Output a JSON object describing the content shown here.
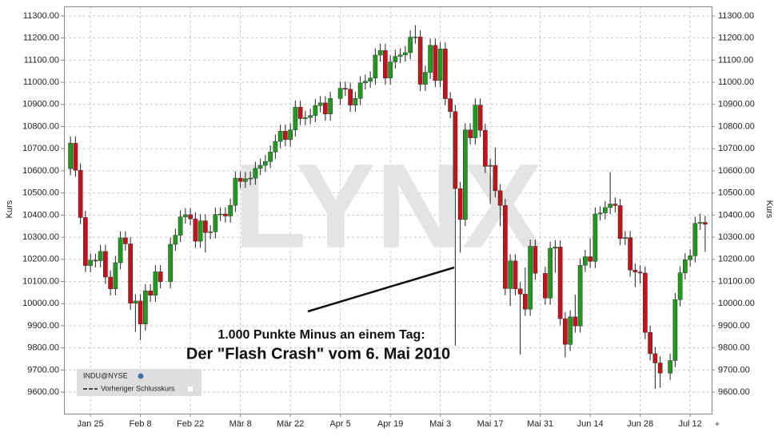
{
  "chart_data": {
    "type": "candlestick",
    "watermark": "LYNX",
    "y_label": "Kurs",
    "annotations": [
      "1.000 Punkte Minus an einem Tag:",
      "Der \"Flash Crash\" vom 6. Mai 2010"
    ],
    "legend": {
      "symbol": "INDU@NYSE",
      "line": "Vorheriger Schlusskurs"
    },
    "up_color": "#1f9a1f",
    "down_color": "#c8101a",
    "grid": true,
    "xlim": [
      -1.3,
      128.3
    ],
    "xticks": [
      {
        "value": 4,
        "label": "Jan 25"
      },
      {
        "value": 14,
        "label": "Feb 8"
      },
      {
        "value": 24,
        "label": "Feb 22"
      },
      {
        "value": 34,
        "label": "Mär 8"
      },
      {
        "value": 44,
        "label": "Mär 22"
      },
      {
        "value": 54,
        "label": "Apr 5"
      },
      {
        "value": 64,
        "label": "Apr 19"
      },
      {
        "value": 74,
        "label": "Mai 3"
      },
      {
        "value": 84,
        "label": "Mai 17"
      },
      {
        "value": 94,
        "label": "Mai 31"
      },
      {
        "value": 104,
        "label": "Jun 14"
      },
      {
        "value": 114,
        "label": "Jun 28"
      },
      {
        "value": 124,
        "label": "Jul 12"
      }
    ],
    "ylim": [
      9503,
      11343
    ],
    "yticks": [
      {
        "value": 9600,
        "label": "9600.00"
      },
      {
        "value": 9700,
        "label": "9700.00"
      },
      {
        "value": 9800,
        "label": "9800.00"
      },
      {
        "value": 9900,
        "label": "9900.00"
      },
      {
        "value": 10000,
        "label": "10000.00"
      },
      {
        "value": 10100,
        "label": "10100.00"
      },
      {
        "value": 10200,
        "label": "10200.00"
      },
      {
        "value": 10300,
        "label": "10300.00"
      },
      {
        "value": 10400,
        "label": "10400.00"
      },
      {
        "value": 10500,
        "label": "10500.00"
      },
      {
        "value": 10600,
        "label": "10600.00"
      },
      {
        "value": 10700,
        "label": "10700.00"
      },
      {
        "value": 10800,
        "label": "10800.00"
      },
      {
        "value": 10900,
        "label": "10900.00"
      },
      {
        "value": 11000,
        "label": "11000.00"
      },
      {
        "value": 11100,
        "label": "11100.00"
      },
      {
        "value": 11200,
        "label": "11200.00"
      },
      {
        "value": 11300,
        "label": "11300.00"
      }
    ],
    "open": [
      10610,
      10725,
      10603,
      10389,
      10172,
      10196,
      10194,
      10236,
      10120,
      10067,
      10185,
      10297,
      10270,
      10002,
      10012,
      9908,
      10058,
      10038,
      10144,
      null,
      10099,
      10268,
      10309,
      10392,
      10402,
      10383,
      10282,
      10374,
      10321,
      10325,
      10403,
      10405,
      10396,
      10444,
      10567,
      10552,
      10564,
      10567,
      10611,
      10625,
      10642,
      10685,
      10733,
      10779,
      10741,
      10785,
      10888,
      10836,
      10841,
      10850,
      10895,
      10907,
      10857,
      null,
      10927,
      10973,
      10969,
      10897,
      10927,
      10997,
      11005,
      11019,
      11123,
      11144,
      11019,
      11092,
      11117,
      11124,
      11134,
      11204,
      11205,
      10991,
      11045,
      11167,
      11008,
      11151,
      10926,
      10868,
      10520,
      10380,
      10785,
      10749,
      10897,
      10783,
      10620,
      10625,
      10510,
      10444,
      10068,
      10193,
      10067,
      10043,
      9975,
      10259,
      null,
      10137,
      10025,
      10250,
      10256,
      9932,
      9816,
      9940,
      9899,
      10173,
      10212,
      10191,
      10405,
      10410,
      10434,
      10450,
      10443,
      10294,
      10298,
      10152,
      10143,
      10138,
      9870,
      9774,
      9732,
      null,
      9686,
      9743,
      10018,
      10139,
      10198,
      10216,
      10363,
      10367
    ],
    "high": [
      10755,
      10755,
      10633,
      10419,
      10226,
      10226,
      10266,
      10266,
      10150,
      10215,
      10327,
      10327,
      10300,
      10042,
      10042,
      10088,
      10088,
      10174,
      10174,
      null,
      10298,
      10339,
      10422,
      10432,
      10432,
      10413,
      10404,
      10404,
      10355,
      10433,
      10435,
      10435,
      10474,
      10597,
      10597,
      10594,
      10597,
      10641,
      10655,
      10672,
      10715,
      10763,
      10809,
      10809,
      10815,
      10918,
      10918,
      10871,
      10880,
      10925,
      10937,
      10937,
      10957,
      null,
      11003,
      11003,
      10999,
      10957,
      11027,
      11035,
      11049,
      11153,
      11174,
      11174,
      11122,
      11147,
      11154,
      11164,
      11234,
      11258,
      11235,
      11075,
      11197,
      11197,
      11181,
      11181,
      10956,
      10898,
      10550,
      10815,
      10815,
      10927,
      10927,
      10813,
      10655,
      10705,
      10540,
      10474,
      10223,
      10223,
      10097,
      10163,
      10289,
      10289,
      null,
      10167,
      10280,
      10286,
      10286,
      9962,
      9970,
      10040,
      10203,
      10242,
      10294,
      10435,
      10440,
      10464,
      10594,
      10480,
      10473,
      10328,
      10328,
      10182,
      10173,
      10168,
      9900,
      9804,
      9762,
      null,
      9773,
      10048,
      10169,
      10228,
      10246,
      10393,
      10407,
      10397
    ],
    "low": [
      10580,
      10573,
      10359,
      10142,
      10142,
      10164,
      10164,
      10090,
      10037,
      10037,
      10155,
      10240,
      9972,
      9872,
      9835,
      9878,
      10008,
      10008,
      10069,
      null,
      10069,
      10238,
      10279,
      10362,
      10353,
      10252,
      10252,
      10231,
      10291,
      10295,
      10373,
      10366,
      10366,
      10414,
      10522,
      10522,
      10534,
      10537,
      10581,
      10595,
      10612,
      10655,
      10703,
      10711,
      10711,
      10755,
      10806,
      10806,
      10811,
      10820,
      10865,
      10827,
      10827,
      null,
      10897,
      10939,
      10867,
      10867,
      10897,
      10967,
      10975,
      10989,
      11093,
      10989,
      10989,
      11062,
      11087,
      11094,
      11104,
      11175,
      10961,
      10961,
      11015,
      10978,
      10978,
      10896,
      10838,
      9810,
      10230,
      10350,
      10719,
      10719,
      10753,
      10590,
      10450,
      10480,
      10350,
      10038,
      9990,
      10037,
      9770,
      9945,
      9945,
      10107,
      null,
      9995,
      9995,
      10140,
      9902,
      9757,
      9786,
      9869,
      9869,
      10143,
      10161,
      10161,
      10375,
      10380,
      10404,
      10413,
      10264,
      10264,
      10122,
      10075,
      10090,
      9840,
      9744,
      9615,
      9620,
      null,
      9656,
      9713,
      9988,
      10109,
      10168,
      10186,
      10333,
      10234
    ],
    "close": [
      10725,
      10603,
      10389,
      10172,
      10196,
      10194,
      10236,
      10120,
      10067,
      10185,
      10297,
      10270,
      10002,
      10012,
      9908,
      10058,
      10038,
      10144,
      10099,
      null,
      10268,
      10309,
      10392,
      10402,
      10383,
      10282,
      10374,
      10321,
      10325,
      10403,
      10405,
      10396,
      10444,
      10567,
      10552,
      10564,
      10567,
      10611,
      10625,
      10642,
      10685,
      10733,
      10779,
      10741,
      10785,
      10888,
      10836,
      10841,
      10850,
      10895,
      10907,
      10857,
      10927,
      null,
      10973,
      10969,
      10897,
      10927,
      10997,
      11005,
      11019,
      11123,
      11144,
      11019,
      11092,
      11117,
      11124,
      11134,
      11204,
      11205,
      10991,
      11045,
      11167,
      11008,
      11151,
      10926,
      10868,
      10520,
      10380,
      10785,
      10749,
      10897,
      10783,
      10620,
      10625,
      10510,
      10444,
      10068,
      10193,
      10067,
      10043,
      9975,
      10259,
      10137,
      null,
      10025,
      10250,
      10256,
      9932,
      9816,
      9940,
      9899,
      10173,
      10212,
      10191,
      10405,
      10410,
      10434,
      10450,
      10443,
      10294,
      10298,
      10152,
      10143,
      10138,
      9870,
      9774,
      9732,
      9686,
      null,
      9743,
      10018,
      10139,
      10198,
      10216,
      10363,
      10367,
      10359
    ]
  }
}
